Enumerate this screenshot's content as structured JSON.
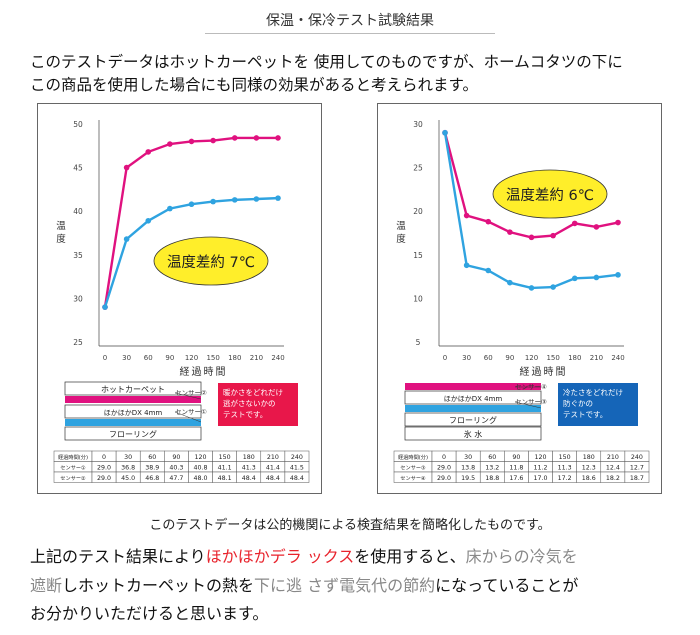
{
  "header": {
    "title": "保温・保冷テスト試験結果"
  },
  "intro": {
    "line1": "このテストデータはホットカーペットを 使用してのものですが、ホームコタツの下に",
    "line2": "この商品を使用した場合にも同様の効果があると考えられます。"
  },
  "colors": {
    "magenta": "#e0117f",
    "blue": "#2fa3e0",
    "heat_box": "#e8174a",
    "cold_box": "#1565b8",
    "oval": "#ffee2a"
  },
  "chart_data": [
    {
      "type": "line",
      "xlabel": "経過時間",
      "ylabel": "温度",
      "x": [
        0,
        30,
        60,
        90,
        120,
        150,
        180,
        210,
        240
      ],
      "ylim": [
        25,
        50
      ],
      "yticks": [
        25,
        30,
        35,
        40,
        45,
        50
      ],
      "series": [
        {
          "name": "センサー②",
          "color": "#e0117f",
          "values": [
            29.0,
            45.0,
            46.8,
            47.7,
            48.0,
            48.1,
            48.4,
            48.4,
            48.4
          ]
        },
        {
          "name": "センサー①",
          "color": "#2fa3e0",
          "values": [
            29.0,
            36.8,
            38.9,
            40.3,
            40.8,
            41.1,
            41.3,
            41.4,
            41.5
          ]
        }
      ],
      "annotation": "温度差約 7℃",
      "layers": {
        "top": "ホットカーペット",
        "middle": "ほかほかDX 4mm",
        "bottom": "フローリング"
      },
      "sensor_labels": [
        "センサー②",
        "センサー①"
      ],
      "callout": [
        "暖かさをどれだけ",
        "逃がさないかの",
        "テストです。"
      ],
      "table": {
        "header": [
          "経過時間(分)",
          "0",
          "30",
          "60",
          "90",
          "120",
          "150",
          "180",
          "210",
          "240"
        ],
        "rows": [
          [
            "センサー①",
            "29.0",
            "36.8",
            "38.9",
            "40.3",
            "40.8",
            "41.1",
            "41.3",
            "41.4",
            "41.5"
          ],
          [
            "センサー②",
            "29.0",
            "45.0",
            "46.8",
            "47.7",
            "48.0",
            "48.1",
            "48.4",
            "48.4",
            "48.4"
          ]
        ]
      }
    },
    {
      "type": "line",
      "xlabel": "経過時間",
      "ylabel": "温度",
      "x": [
        0,
        30,
        60,
        90,
        120,
        150,
        180,
        210,
        240
      ],
      "ylim": [
        5,
        30
      ],
      "yticks": [
        5,
        10,
        15,
        20,
        25,
        30
      ],
      "series": [
        {
          "name": "センサー④",
          "color": "#e0117f",
          "values": [
            29.0,
            19.5,
            18.8,
            17.6,
            17.0,
            17.2,
            18.6,
            18.2,
            18.7
          ]
        },
        {
          "name": "センサー③",
          "color": "#2fa3e0",
          "values": [
            29.0,
            13.8,
            13.2,
            11.8,
            11.2,
            11.3,
            12.3,
            12.4,
            12.7
          ]
        }
      ],
      "annotation": "温度差約 6℃",
      "layers": {
        "top": "ほかほかDX 4mm",
        "middle": "フローリング",
        "bottom": "氷 水"
      },
      "sensor_labels": [
        "センサー④",
        "センサー③"
      ],
      "callout": [
        "冷たさをどれだけ",
        "防ぐかの",
        "テストです。"
      ],
      "table": {
        "header": [
          "経過時間(分)",
          "0",
          "30",
          "60",
          "90",
          "120",
          "150",
          "180",
          "210",
          "240"
        ],
        "rows": [
          [
            "センサー③",
            "29.0",
            "13.8",
            "13.2",
            "11.8",
            "11.2",
            "11.3",
            "12.3",
            "12.4",
            "12.7"
          ],
          [
            "センサー④",
            "29.0",
            "19.5",
            "18.8",
            "17.6",
            "17.0",
            "17.2",
            "18.6",
            "18.2",
            "18.7"
          ]
        ]
      }
    }
  ],
  "footer": {
    "note": "このテストデータは公的機関による検査結果を簡略化したものです。",
    "c1a": "上記のテスト結果により",
    "c1b": "ほかほかデラ ックス",
    "c1c": "を使用すると、",
    "c1d": "床からの冷気を",
    "c2a": "遮断",
    "c2b": "しホットカーペットの熱を",
    "c2c": "下に逃 さず",
    "c2d": "電気代の節約",
    "c2e": "になっていることが",
    "c3": "お分かりいただけると思います。"
  }
}
